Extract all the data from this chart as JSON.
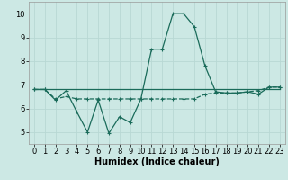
{
  "xlabel": "Humidex (Indice chaleur)",
  "bg_color": "#cce8e4",
  "grid_color": "#b8d8d4",
  "line_color": "#1a6b5a",
  "xlim": [
    -0.5,
    23.5
  ],
  "ylim": [
    4.5,
    10.5
  ],
  "xticks": [
    0,
    1,
    2,
    3,
    4,
    5,
    6,
    7,
    8,
    9,
    10,
    11,
    12,
    13,
    14,
    15,
    16,
    17,
    18,
    19,
    20,
    21,
    22,
    23
  ],
  "yticks": [
    5,
    6,
    7,
    8,
    9,
    10
  ],
  "series1_x": [
    0,
    1,
    2,
    3,
    4,
    5,
    6,
    7,
    8,
    9,
    10,
    11,
    12,
    13,
    14,
    15,
    16,
    17,
    18,
    19,
    20,
    21,
    22,
    23
  ],
  "series1_y": [
    6.8,
    6.8,
    6.35,
    6.75,
    5.85,
    5.0,
    6.35,
    4.95,
    5.65,
    5.4,
    6.4,
    8.5,
    8.5,
    10.0,
    10.0,
    9.45,
    7.8,
    6.7,
    6.65,
    6.65,
    6.7,
    6.6,
    6.9,
    6.9
  ],
  "series2_x": [
    0,
    1,
    2,
    3,
    4,
    5,
    6,
    7,
    8,
    9,
    10,
    11,
    12,
    13,
    14,
    15,
    16,
    17,
    18,
    19,
    20,
    21,
    22,
    23
  ],
  "series2_y": [
    6.8,
    6.8,
    6.8,
    6.8,
    6.8,
    6.8,
    6.8,
    6.8,
    6.8,
    6.8,
    6.8,
    6.8,
    6.8,
    6.8,
    6.8,
    6.8,
    6.8,
    6.8,
    6.8,
    6.8,
    6.8,
    6.8,
    6.8,
    6.8
  ],
  "series3_x": [
    0,
    1,
    2,
    3,
    4,
    5,
    6,
    7,
    8,
    9,
    10,
    11,
    12,
    13,
    14,
    15,
    16,
    17,
    18,
    19,
    20,
    21,
    22,
    23
  ],
  "series3_y": [
    6.8,
    6.8,
    6.4,
    6.5,
    6.4,
    6.4,
    6.4,
    6.4,
    6.4,
    6.4,
    6.4,
    6.4,
    6.4,
    6.4,
    6.4,
    6.4,
    6.6,
    6.65,
    6.65,
    6.65,
    6.7,
    6.75,
    6.9,
    6.9
  ],
  "marker_size": 3.0,
  "line_width": 0.9,
  "font_size_ticks": 6,
  "font_size_label": 7
}
